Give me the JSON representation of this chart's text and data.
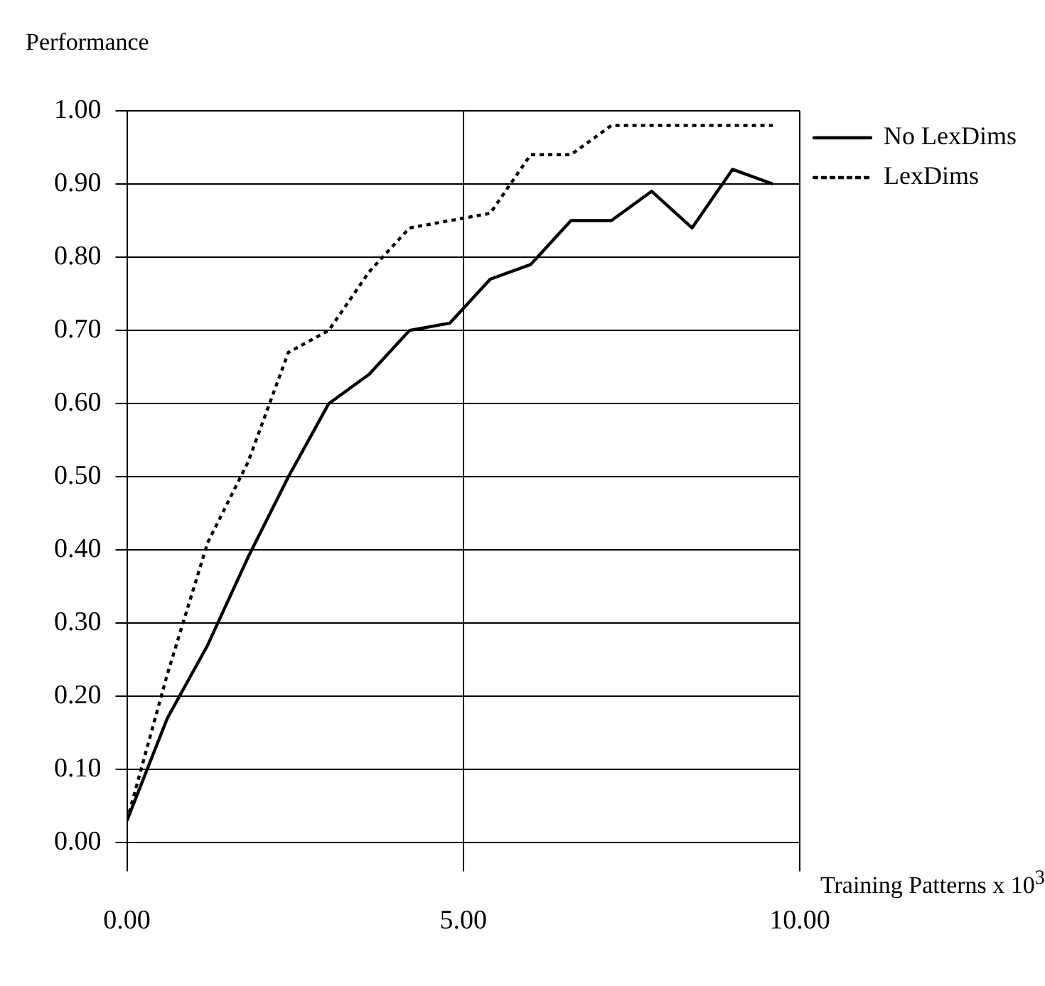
{
  "chart_data": {
    "type": "line",
    "title": "Performance",
    "xlabel": "Training Patterns x 10$^{3}$",
    "xlim": [
      0,
      10
    ],
    "xticks": [
      {
        "value": 0,
        "label": "0.00"
      },
      {
        "value": 5,
        "label": "5.00"
      },
      {
        "value": 10,
        "label": "10.00"
      }
    ],
    "ylim": [
      0,
      1
    ],
    "yticks": [
      {
        "value": 0,
        "label": "0.00"
      },
      {
        "value": 0.1,
        "label": "0.10"
      },
      {
        "value": 0.2,
        "label": "0.20"
      },
      {
        "value": 0.3,
        "label": "0.30"
      },
      {
        "value": 0.4,
        "label": "0.40"
      },
      {
        "value": 0.5,
        "label": "0.50"
      },
      {
        "value": 0.6,
        "label": "0.60"
      },
      {
        "value": 0.7,
        "label": "0.70"
      },
      {
        "value": 0.8,
        "label": "0.80"
      },
      {
        "value": 0.9,
        "label": "0.90"
      },
      {
        "value": 1,
        "label": "1.00"
      }
    ],
    "x": [
      0,
      0.6,
      1.2,
      1.8,
      2.4,
      3.0,
      3.6,
      4.2,
      4.8,
      5.4,
      6.0,
      6.6,
      7.2,
      7.8,
      8.4,
      9.0,
      9.6
    ],
    "series": [
      {
        "name": "No LexDims",
        "color": "#000000",
        "line_style": "solid",
        "values": [
          0.03,
          0.17,
          0.27,
          0.39,
          0.5,
          0.6,
          0.64,
          0.7,
          0.71,
          0.77,
          0.79,
          0.85,
          0.85,
          0.89,
          0.84,
          0.92,
          0.9
        ]
      },
      {
        "name": "LexDims",
        "color": "#000000",
        "line_style": "dotted",
        "values": [
          0.03,
          0.23,
          0.41,
          0.52,
          0.67,
          0.7,
          0.78,
          0.84,
          0.85,
          0.86,
          0.94,
          0.94,
          0.98,
          0.98,
          0.98,
          0.98,
          0.98
        ]
      }
    ],
    "grid": true,
    "legend": "top right",
    "marker": "none"
  }
}
